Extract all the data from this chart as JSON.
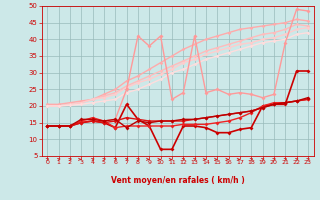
{
  "xlabel": "Vent moyen/en rafales ( km/h )",
  "xlim": [
    -0.5,
    23.5
  ],
  "ylim": [
    5,
    50
  ],
  "yticks": [
    5,
    10,
    15,
    20,
    25,
    30,
    35,
    40,
    45,
    50
  ],
  "xticks": [
    0,
    1,
    2,
    3,
    4,
    5,
    6,
    7,
    8,
    9,
    10,
    11,
    12,
    13,
    14,
    15,
    16,
    17,
    18,
    19,
    20,
    21,
    22,
    23
  ],
  "background_color": "#cce8e8",
  "grid_color": "#99bbbb",
  "series": [
    {
      "x": [
        0,
        1,
        2,
        3,
        4,
        5,
        6,
        7,
        8,
        9,
        10,
        11,
        12,
        13,
        14,
        15,
        16,
        17,
        18,
        19,
        20,
        21,
        22,
        23
      ],
      "y": [
        20.5,
        20.5,
        21.0,
        21.5,
        22.0,
        23.5,
        25.0,
        27.5,
        29.0,
        31.0,
        33.0,
        35.0,
        37.0,
        38.5,
        40.0,
        41.0,
        42.0,
        43.0,
        43.5,
        44.0,
        44.5,
        45.0,
        46.0,
        45.5
      ],
      "color": "#ffaaaa",
      "linewidth": 1.0,
      "marker": "D",
      "markersize": 1.8,
      "linestyle": "-"
    },
    {
      "x": [
        0,
        1,
        2,
        3,
        4,
        5,
        6,
        7,
        8,
        9,
        10,
        11,
        12,
        13,
        14,
        15,
        16,
        17,
        18,
        19,
        20,
        21,
        22,
        23
      ],
      "y": [
        20.0,
        20.0,
        20.5,
        21.0,
        22.0,
        23.0,
        24.0,
        26.0,
        27.5,
        29.0,
        30.5,
        32.0,
        33.5,
        35.0,
        36.5,
        37.5,
        38.5,
        39.5,
        40.5,
        41.5,
        42.0,
        43.0,
        44.5,
        44.0
      ],
      "color": "#ffbbbb",
      "linewidth": 1.0,
      "marker": "D",
      "markersize": 1.8,
      "linestyle": "-"
    },
    {
      "x": [
        0,
        1,
        2,
        3,
        4,
        5,
        6,
        7,
        8,
        9,
        10,
        11,
        12,
        13,
        14,
        15,
        16,
        17,
        18,
        19,
        20,
        21,
        22,
        23
      ],
      "y": [
        20.0,
        20.0,
        20.5,
        21.0,
        22.0,
        22.5,
        23.5,
        25.5,
        27.0,
        28.0,
        29.5,
        31.0,
        33.0,
        34.0,
        35.5,
        36.5,
        37.5,
        38.5,
        39.0,
        40.0,
        40.5,
        41.5,
        43.0,
        43.5
      ],
      "color": "#ffcccc",
      "linewidth": 1.0,
      "marker": "D",
      "markersize": 1.8,
      "linestyle": "-"
    },
    {
      "x": [
        0,
        1,
        2,
        3,
        4,
        5,
        6,
        7,
        8,
        9,
        10,
        11,
        12,
        13,
        14,
        15,
        16,
        17,
        18,
        19,
        20,
        21,
        22,
        23
      ],
      "y": [
        20.0,
        20.0,
        20.2,
        20.5,
        21.0,
        21.5,
        22.0,
        24.0,
        25.0,
        26.5,
        28.0,
        30.0,
        31.0,
        32.5,
        34.0,
        35.0,
        36.0,
        37.0,
        38.0,
        39.0,
        39.5,
        40.0,
        41.5,
        42.0
      ],
      "color": "#ffdddd",
      "linewidth": 1.0,
      "marker": "D",
      "markersize": 1.8,
      "linestyle": "-"
    },
    {
      "x": [
        0,
        1,
        2,
        3,
        4,
        5,
        6,
        7,
        8,
        9,
        10,
        11,
        12,
        13,
        14,
        15,
        16,
        17,
        18,
        19,
        20,
        21,
        22,
        23
      ],
      "y": [
        14.0,
        14.0,
        14.0,
        15.5,
        16.0,
        15.5,
        16.0,
        25.0,
        41.0,
        38.0,
        41.0,
        22.0,
        24.0,
        41.0,
        24.0,
        25.0,
        23.5,
        24.0,
        23.5,
        22.5,
        23.5,
        39.0,
        49.0,
        48.5
      ],
      "color": "#ff9999",
      "linewidth": 1.0,
      "marker": "D",
      "markersize": 2.0,
      "linestyle": "-"
    },
    {
      "x": [
        0,
        1,
        2,
        3,
        4,
        5,
        6,
        7,
        8,
        9,
        10,
        11,
        12,
        13,
        14,
        15,
        16,
        17,
        18,
        19,
        20,
        21,
        22,
        23
      ],
      "y": [
        14.0,
        14.0,
        14.0,
        15.0,
        15.5,
        15.0,
        13.5,
        20.5,
        16.0,
        14.0,
        7.0,
        7.0,
        14.0,
        14.0,
        13.5,
        12.0,
        12.0,
        13.0,
        13.5,
        20.0,
        20.5,
        20.5,
        30.5,
        30.5
      ],
      "color": "#cc0000",
      "linewidth": 1.2,
      "marker": "D",
      "markersize": 2.0,
      "linestyle": "-"
    },
    {
      "x": [
        0,
        1,
        2,
        3,
        4,
        5,
        6,
        7,
        8,
        9,
        10,
        11,
        12,
        13,
        14,
        15,
        16,
        17,
        18,
        19,
        20,
        21,
        22,
        23
      ],
      "y": [
        14.0,
        14.0,
        14.0,
        15.5,
        16.5,
        15.5,
        13.5,
        14.0,
        14.0,
        14.0,
        14.0,
        14.0,
        14.5,
        14.5,
        14.5,
        15.0,
        15.5,
        16.5,
        18.0,
        20.0,
        21.0,
        21.0,
        21.5,
        22.0
      ],
      "color": "#ee2222",
      "linewidth": 1.0,
      "marker": "D",
      "markersize": 2.0,
      "linestyle": "-"
    },
    {
      "x": [
        0,
        1,
        2,
        3,
        4,
        5,
        6,
        7,
        8,
        9,
        10,
        11,
        12,
        13,
        14,
        15,
        16,
        17,
        18,
        19,
        20,
        21,
        22,
        23
      ],
      "y": [
        14.0,
        14.0,
        14.0,
        15.0,
        15.5,
        15.0,
        15.5,
        16.5,
        16.0,
        15.5,
        15.5,
        15.5,
        15.5,
        16.0,
        16.5,
        17.0,
        17.5,
        18.0,
        18.5,
        19.5,
        20.5,
        21.0,
        21.5,
        22.0
      ],
      "color": "#dd1111",
      "linewidth": 1.0,
      "marker": "D",
      "markersize": 2.0,
      "linestyle": "-"
    },
    {
      "x": [
        0,
        1,
        2,
        3,
        4,
        5,
        6,
        7,
        8,
        9,
        10,
        11,
        12,
        13,
        14,
        15,
        16,
        17,
        18,
        19,
        20,
        21,
        22,
        23
      ],
      "y": [
        14.0,
        14.0,
        14.0,
        16.0,
        16.0,
        15.5,
        16.0,
        13.5,
        15.5,
        15.0,
        15.5,
        15.5,
        16.0,
        16.0,
        16.5,
        17.0,
        17.5,
        18.0,
        18.5,
        19.5,
        20.5,
        21.0,
        21.5,
        22.5
      ],
      "color": "#bb0000",
      "linewidth": 1.0,
      "marker": "D",
      "markersize": 2.0,
      "linestyle": "-"
    }
  ],
  "arrow_color": "#cc2222",
  "arrow_angles": [
    45,
    45,
    45,
    0,
    45,
    45,
    45,
    45,
    45,
    0,
    0,
    0,
    45,
    45,
    0,
    0,
    0,
    0,
    45,
    45,
    45,
    45,
    45,
    45
  ]
}
